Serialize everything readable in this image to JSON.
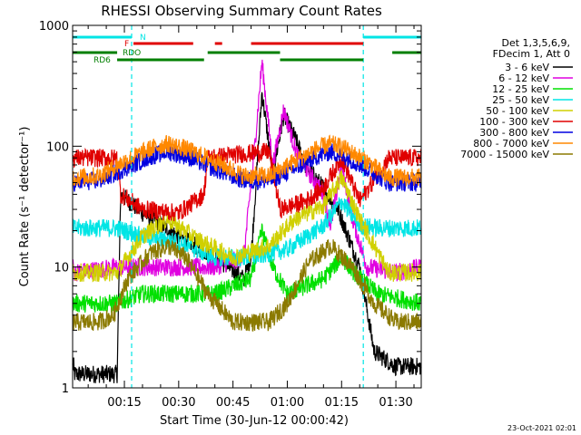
{
  "chart_data": {
    "type": "line",
    "title": "RHESSI Observing Summary Count Rates",
    "xlabel": "Start Time (30-Jun-12 00:00:42)",
    "ylabel": "Count Rate (s⁻¹ detector⁻¹)",
    "yscale": "log",
    "ylim": [
      1,
      1000
    ],
    "xlim_minutes": [
      0.7,
      97
    ],
    "x_ticks": [
      {
        "min": 15,
        "label": "00:15"
      },
      {
        "min": 30,
        "label": "00:30"
      },
      {
        "min": 45,
        "label": "00:45"
      },
      {
        "min": 60,
        "label": "01:00"
      },
      {
        "min": 75,
        "label": "01:15"
      },
      {
        "min": 90,
        "label": "01:30"
      }
    ],
    "y_ticks": [
      {
        "v": 1,
        "label": "1"
      },
      {
        "v": 10,
        "label": "10"
      },
      {
        "v": 100,
        "label": "100"
      },
      {
        "v": 1000,
        "label": "1000"
      }
    ],
    "vlines_minutes": [
      17,
      81
    ],
    "legend_title": [
      "Det 1,3,5,6,9,",
      "FDecim 1, Att 0"
    ],
    "legend_position": "right",
    "flag_bars": [
      {
        "label": "N",
        "color": "#00e5e5",
        "segments": [
          [
            0.7,
            17
          ],
          [
            81,
            97
          ]
        ]
      },
      {
        "label": "F",
        "color": "#e00000",
        "segments": [
          [
            17.5,
            34
          ],
          [
            40,
            42
          ],
          [
            50,
            81
          ]
        ]
      },
      {
        "label": "RDO",
        "color": "#007f00",
        "segments": [
          [
            0.7,
            13
          ],
          [
            38,
            58
          ],
          [
            89,
            97
          ]
        ]
      },
      {
        "label": "RD6",
        "color": "#007f00",
        "segments": [
          [
            13,
            37
          ],
          [
            58,
            81
          ]
        ]
      }
    ],
    "series": [
      {
        "name": "3 - 6 keV",
        "color": "#000000",
        "values_approx": [
          [
            1,
            1.3
          ],
          [
            13,
            1.3
          ],
          [
            14,
            40
          ],
          [
            20,
            28
          ],
          [
            30,
            18
          ],
          [
            40,
            12
          ],
          [
            48,
            8
          ],
          [
            50,
            12
          ],
          [
            53,
            280
          ],
          [
            56,
            60
          ],
          [
            59,
            180
          ],
          [
            62,
            120
          ],
          [
            65,
            70
          ],
          [
            70,
            45
          ],
          [
            74,
            30
          ],
          [
            80,
            10
          ],
          [
            84,
            2
          ],
          [
            90,
            1.5
          ],
          [
            97,
            1.5
          ]
        ]
      },
      {
        "name": "6 - 12 keV",
        "color": "#e000e0",
        "values_approx": [
          [
            1,
            9
          ],
          [
            13,
            10
          ],
          [
            20,
            10
          ],
          [
            30,
            10
          ],
          [
            40,
            10
          ],
          [
            48,
            12
          ],
          [
            51,
            100
          ],
          [
            53,
            500
          ],
          [
            56,
            70
          ],
          [
            59,
            200
          ],
          [
            63,
            80
          ],
          [
            66,
            60
          ],
          [
            70,
            40
          ],
          [
            72,
            22
          ],
          [
            75,
            70
          ],
          [
            78,
            25
          ],
          [
            82,
            10
          ],
          [
            90,
            9
          ],
          [
            97,
            10
          ]
        ]
      },
      {
        "name": "12 - 25 keV",
        "color": "#00e000",
        "values_approx": [
          [
            1,
            5
          ],
          [
            13,
            5
          ],
          [
            20,
            6
          ],
          [
            30,
            6
          ],
          [
            40,
            6
          ],
          [
            50,
            8
          ],
          [
            53,
            20
          ],
          [
            56,
            10
          ],
          [
            60,
            6
          ],
          [
            70,
            8
          ],
          [
            75,
            12
          ],
          [
            80,
            8
          ],
          [
            85,
            6
          ],
          [
            97,
            5
          ]
        ]
      },
      {
        "name": "25 - 50 keV",
        "color": "#00e5e5",
        "values_approx": [
          [
            1,
            21
          ],
          [
            13,
            21
          ],
          [
            20,
            18
          ],
          [
            30,
            16
          ],
          [
            40,
            12
          ],
          [
            50,
            12
          ],
          [
            60,
            14
          ],
          [
            70,
            22
          ],
          [
            75,
            35
          ],
          [
            80,
            22
          ],
          [
            85,
            21
          ],
          [
            97,
            21
          ]
        ]
      },
      {
        "name": "50 - 100 keV",
        "color": "#d0d000",
        "values_approx": [
          [
            1,
            9
          ],
          [
            13,
            9
          ],
          [
            20,
            18
          ],
          [
            27,
            25
          ],
          [
            35,
            17
          ],
          [
            45,
            12
          ],
          [
            55,
            15
          ],
          [
            62,
            25
          ],
          [
            70,
            32
          ],
          [
            75,
            55
          ],
          [
            80,
            25
          ],
          [
            88,
            9
          ],
          [
            97,
            9
          ]
        ]
      },
      {
        "name": "100 - 300 keV",
        "color": "#e00000",
        "values_approx": [
          [
            1,
            80
          ],
          [
            13,
            80
          ],
          [
            14,
            40
          ],
          [
            20,
            30
          ],
          [
            30,
            28
          ],
          [
            37,
            40
          ],
          [
            38,
            80
          ],
          [
            45,
            85
          ],
          [
            55,
            90
          ],
          [
            58,
            30
          ],
          [
            65,
            35
          ],
          [
            70,
            45
          ],
          [
            75,
            80
          ],
          [
            80,
            35
          ],
          [
            88,
            80
          ],
          [
            97,
            80
          ]
        ]
      },
      {
        "name": "300 - 800 keV",
        "color": "#0000e0",
        "values_approx": [
          [
            1,
            50
          ],
          [
            8,
            52
          ],
          [
            15,
            65
          ],
          [
            22,
            82
          ],
          [
            27,
            90
          ],
          [
            32,
            83
          ],
          [
            40,
            65
          ],
          [
            48,
            52
          ],
          [
            55,
            52
          ],
          [
            62,
            65
          ],
          [
            68,
            82
          ],
          [
            72,
            90
          ],
          [
            76,
            82
          ],
          [
            82,
            65
          ],
          [
            88,
            50
          ],
          [
            97,
            50
          ]
        ]
      },
      {
        "name": "800 - 7000 keV",
        "color": "#ff8800",
        "values_approx": [
          [
            1,
            55
          ],
          [
            8,
            57
          ],
          [
            15,
            75
          ],
          [
            22,
            95
          ],
          [
            27,
            105
          ],
          [
            32,
            95
          ],
          [
            40,
            75
          ],
          [
            48,
            57
          ],
          [
            55,
            57
          ],
          [
            62,
            75
          ],
          [
            68,
            95
          ],
          [
            72,
            105
          ],
          [
            76,
            95
          ],
          [
            82,
            75
          ],
          [
            88,
            55
          ],
          [
            97,
            55
          ]
        ]
      },
      {
        "name": "7000 - 15000 keV",
        "color": "#8b7a00",
        "values_approx": [
          [
            1,
            3.5
          ],
          [
            8,
            3.5
          ],
          [
            12,
            4
          ],
          [
            16,
            8
          ],
          [
            22,
            13
          ],
          [
            27,
            15
          ],
          [
            32,
            12
          ],
          [
            38,
            6
          ],
          [
            45,
            3.5
          ],
          [
            55,
            3.5
          ],
          [
            60,
            5
          ],
          [
            66,
            11
          ],
          [
            72,
            15
          ],
          [
            78,
            10
          ],
          [
            84,
            5
          ],
          [
            90,
            3.5
          ],
          [
            97,
            3.5
          ]
        ]
      }
    ]
  },
  "footer": {
    "timestamp": "23-Oct-2021 02:01"
  }
}
